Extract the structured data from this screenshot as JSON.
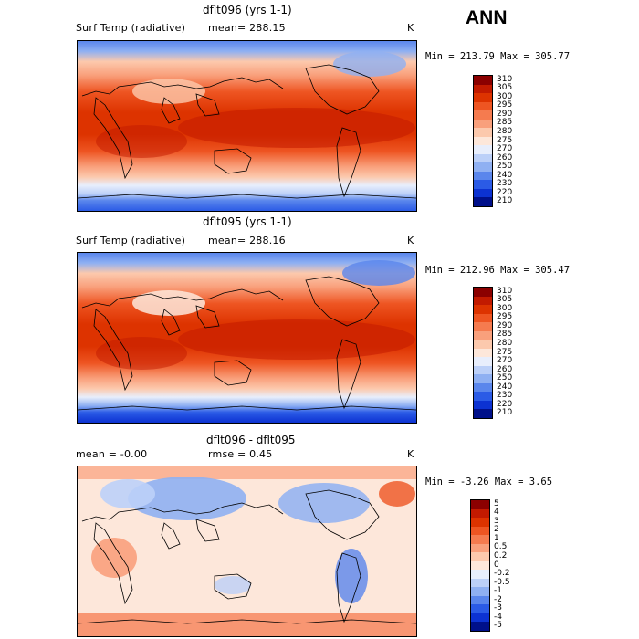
{
  "season": "ANN",
  "panels": [
    {
      "title": "dflt096 (yrs 1-1)",
      "variable": "Surf Temp (radiative)",
      "stat": "mean= 288.15",
      "units": "K",
      "minmax": "Min = 213.79  Max = 305.77",
      "colorbar": {
        "levels": [
          "310",
          "305",
          "300",
          "295",
          "290",
          "285",
          "280",
          "275",
          "270",
          "260",
          "250",
          "240",
          "230",
          "220",
          "210"
        ],
        "colors": [
          "#8b0000",
          "#c21a00",
          "#dd3300",
          "#ee5522",
          "#f57b4f",
          "#f9a07c",
          "#fcc9ad",
          "#fde7da",
          "#e8eefc",
          "#bcd0f8",
          "#8fb0f2",
          "#5a86ec",
          "#2b5be6",
          "#0c32d2",
          "#00108a"
        ]
      }
    },
    {
      "title": "dflt095 (yrs 1-1)",
      "variable": "Surf Temp (radiative)",
      "stat": "mean= 288.16",
      "units": "K",
      "minmax": "Min = 212.96  Max = 305.47",
      "colorbar": {
        "levels": [
          "310",
          "305",
          "300",
          "295",
          "290",
          "285",
          "280",
          "275",
          "270",
          "260",
          "250",
          "240",
          "230",
          "220",
          "210"
        ],
        "colors": [
          "#8b0000",
          "#c21a00",
          "#dd3300",
          "#ee5522",
          "#f57b4f",
          "#f9a07c",
          "#fcc9ad",
          "#fde7da",
          "#e8eefc",
          "#bcd0f8",
          "#8fb0f2",
          "#5a86ec",
          "#2b5be6",
          "#0c32d2",
          "#00108a"
        ]
      }
    },
    {
      "title": "dflt096 - dflt095",
      "stat": "mean =   -0.00",
      "rmse": "rmse =    0.45",
      "units": "K",
      "minmax": "Min =  -3.26  Max =   3.65",
      "colorbar": {
        "levels": [
          "5",
          "4",
          "3",
          "2",
          "1",
          "0.5",
          "0.2",
          "0",
          "-0.2",
          "-0.5",
          "-1",
          "-2",
          "-3",
          "-4",
          "-5"
        ],
        "colors": [
          "#8b0000",
          "#c21a00",
          "#dd3300",
          "#ee5522",
          "#f57b4f",
          "#f9a07c",
          "#fcc9ad",
          "#fde7da",
          "#e8eefc",
          "#bcd0f8",
          "#8fb0f2",
          "#5a86ec",
          "#2b5be6",
          "#0c32d2",
          "#00108a"
        ]
      }
    }
  ]
}
